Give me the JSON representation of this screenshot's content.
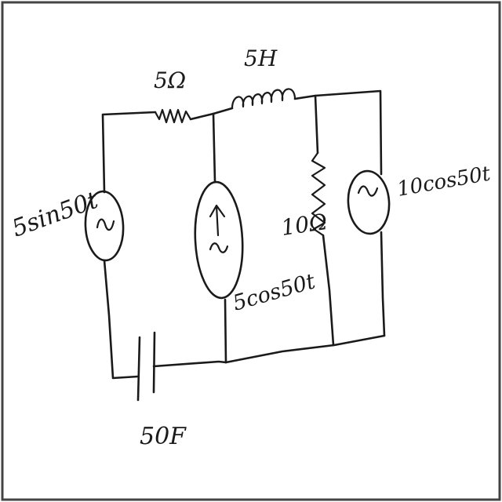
{
  "labels": {
    "resistor_top": "5Ω",
    "inductor_top": "5H",
    "source_left": "5sin50t",
    "source_middle": "5cos50t",
    "resistor_right": "10Ω",
    "source_right": "10cos50t",
    "capacitor_bottom": "50F"
  }
}
